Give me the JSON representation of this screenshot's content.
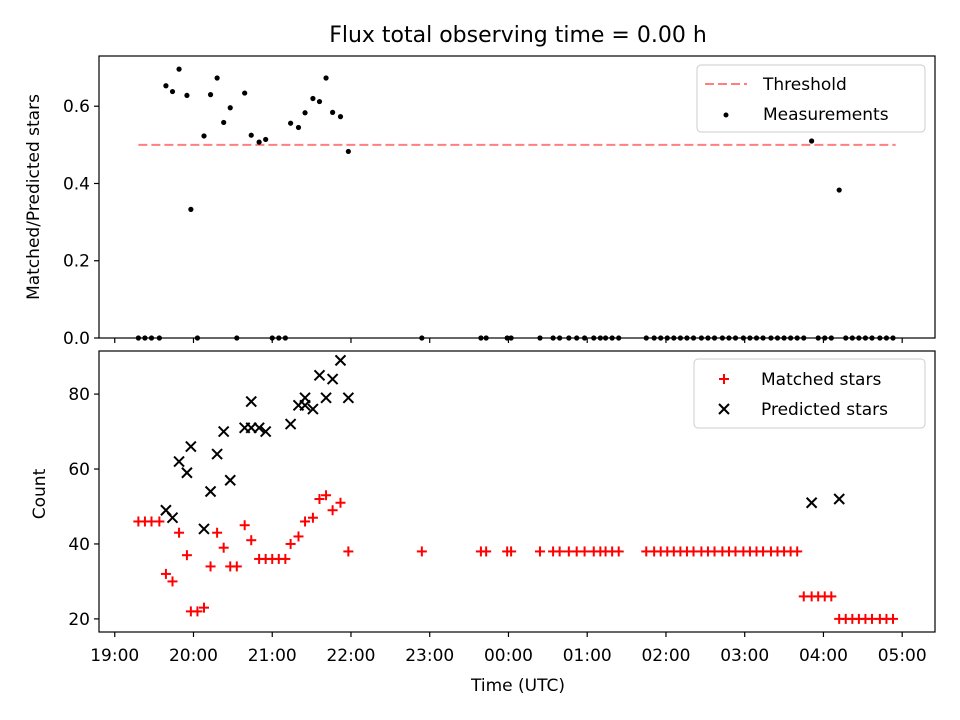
{
  "chart_data": [
    {
      "type": "scatter",
      "title": "Flux total observing time = 0.00 h",
      "xlabel": "",
      "ylabel": "Matched/Predicted stars",
      "xlim": [
        "2000-01-01T18:48",
        "2000-01-02T05:25"
      ],
      "ylim": [
        0,
        0.73
      ],
      "yticks": [
        0.0,
        0.2,
        0.4,
        0.6
      ],
      "ytick_labels": [
        "0.0",
        "0.2",
        "0.4",
        "0.6"
      ],
      "grid": false,
      "legend": "top-right",
      "threshold": {
        "name": "Threshold",
        "y": 0.5,
        "x": [
          "2000-01-01T19:18",
          "2000-01-02T04:55"
        ],
        "color": "#ff7f7f",
        "style": "dashed"
      },
      "series": [
        {
          "name": "Measurements",
          "color": "#000000",
          "marker": "dot",
          "points": [
            [
              "2000-01-01T19:18",
              0.0
            ],
            [
              "2000-01-01T19:23",
              0.0
            ],
            [
              "2000-01-01T19:28",
              0.0
            ],
            [
              "2000-01-01T19:34",
              0.0
            ],
            [
              "2000-01-01T19:39",
              0.653
            ],
            [
              "2000-01-01T19:44",
              0.638
            ],
            [
              "2000-01-01T19:49",
              0.696
            ],
            [
              "2000-01-01T19:55",
              0.628
            ],
            [
              "2000-01-01T19:58",
              0.333
            ],
            [
              "2000-01-01T20:03",
              0.0
            ],
            [
              "2000-01-01T20:08",
              0.523
            ],
            [
              "2000-01-01T20:13",
              0.63
            ],
            [
              "2000-01-01T20:18",
              0.673
            ],
            [
              "2000-01-01T20:23",
              0.558
            ],
            [
              "2000-01-01T20:28",
              0.596
            ],
            [
              "2000-01-01T20:33",
              0.0
            ],
            [
              "2000-01-01T20:39",
              0.634
            ],
            [
              "2000-01-01T20:44",
              0.525
            ],
            [
              "2000-01-01T20:50",
              0.507
            ],
            [
              "2000-01-01T20:55",
              0.514
            ],
            [
              "2000-01-01T21:00",
              0.0
            ],
            [
              "2000-01-01T21:05",
              0.0
            ],
            [
              "2000-01-01T21:10",
              0.0
            ],
            [
              "2000-01-01T21:14",
              0.556
            ],
            [
              "2000-01-01T21:20",
              0.545
            ],
            [
              "2000-01-01T21:25",
              0.583
            ],
            [
              "2000-01-01T21:31",
              0.62
            ],
            [
              "2000-01-01T21:36",
              0.612
            ],
            [
              "2000-01-01T21:41",
              0.673
            ],
            [
              "2000-01-01T21:46",
              0.584
            ],
            [
              "2000-01-01T21:52",
              0.573
            ],
            [
              "2000-01-01T21:58",
              0.483
            ],
            [
              "2000-01-01T22:54",
              0.0
            ],
            [
              "2000-01-01T23:39",
              0.0
            ],
            [
              "2000-01-01T23:43",
              0.0
            ],
            [
              "2000-01-01T23:59",
              0.0
            ],
            [
              "2000-01-02T00:02",
              0.0
            ],
            [
              "2000-01-02T00:24",
              0.0
            ],
            [
              "2000-01-02T00:34",
              0.0
            ],
            [
              "2000-01-02T00:39",
              0.0
            ],
            [
              "2000-01-02T00:46",
              0.0
            ],
            [
              "2000-01-02T00:52",
              0.0
            ],
            [
              "2000-01-02T00:58",
              0.0
            ],
            [
              "2000-01-02T01:05",
              0.0
            ],
            [
              "2000-01-02T01:10",
              0.0
            ],
            [
              "2000-01-02T01:14",
              0.0
            ],
            [
              "2000-01-02T01:19",
              0.0
            ],
            [
              "2000-01-02T01:24",
              0.0
            ],
            [
              "2000-01-02T01:45",
              0.0
            ],
            [
              "2000-01-02T01:51",
              0.0
            ],
            [
              "2000-01-02T01:56",
              0.0
            ],
            [
              "2000-01-02T02:01",
              0.0
            ],
            [
              "2000-01-02T02:06",
              0.0
            ],
            [
              "2000-01-02T02:11",
              0.0
            ],
            [
              "2000-01-02T02:16",
              0.0
            ],
            [
              "2000-01-02T02:21",
              0.0
            ],
            [
              "2000-01-02T02:27",
              0.0
            ],
            [
              "2000-01-02T02:32",
              0.0
            ],
            [
              "2000-01-02T02:37",
              0.0
            ],
            [
              "2000-01-02T02:43",
              0.0
            ],
            [
              "2000-01-02T02:48",
              0.0
            ],
            [
              "2000-01-02T02:53",
              0.0
            ],
            [
              "2000-01-02T02:59",
              0.0
            ],
            [
              "2000-01-02T03:04",
              0.0
            ],
            [
              "2000-01-02T03:09",
              0.0
            ],
            [
              "2000-01-02T03:14",
              0.0
            ],
            [
              "2000-01-02T03:20",
              0.0
            ],
            [
              "2000-01-02T03:25",
              0.0
            ],
            [
              "2000-01-02T03:30",
              0.0
            ],
            [
              "2000-01-02T03:35",
              0.0
            ],
            [
              "2000-01-02T03:40",
              0.0
            ],
            [
              "2000-01-02T03:45",
              0.0
            ],
            [
              "2000-01-02T03:51",
              0.51
            ],
            [
              "2000-01-02T03:56",
              0.0
            ],
            [
              "2000-01-02T04:01",
              0.0
            ],
            [
              "2000-01-02T04:06",
              0.0
            ],
            [
              "2000-01-02T04:12",
              0.383
            ],
            [
              "2000-01-02T04:17",
              0.0
            ],
            [
              "2000-01-02T04:22",
              0.0
            ],
            [
              "2000-01-02T04:27",
              0.0
            ],
            [
              "2000-01-02T04:32",
              0.0
            ],
            [
              "2000-01-02T04:37",
              0.0
            ],
            [
              "2000-01-02T04:43",
              0.0
            ],
            [
              "2000-01-02T04:48",
              0.0
            ],
            [
              "2000-01-02T04:53",
              0.0
            ]
          ]
        }
      ]
    },
    {
      "type": "scatter",
      "title": "",
      "xlabel": "Time (UTC)",
      "ylabel": "Count",
      "xlim": [
        "2000-01-01T18:48",
        "2000-01-02T05:25"
      ],
      "ylim": [
        16.5,
        91.5
      ],
      "yticks": [
        20,
        40,
        60,
        80
      ],
      "ytick_labels": [
        "20",
        "40",
        "60",
        "80"
      ],
      "xticks": [
        "2000-01-01T19:00",
        "2000-01-01T20:00",
        "2000-01-01T21:00",
        "2000-01-01T22:00",
        "2000-01-01T23:00",
        "2000-01-02T00:00",
        "2000-01-02T01:00",
        "2000-01-02T02:00",
        "2000-01-02T03:00",
        "2000-01-02T04:00",
        "2000-01-02T05:00"
      ],
      "xtick_labels": [
        "19:00",
        "20:00",
        "21:00",
        "22:00",
        "23:00",
        "00:00",
        "01:00",
        "02:00",
        "03:00",
        "04:00",
        "05:00"
      ],
      "grid": false,
      "legend": "top-right",
      "series": [
        {
          "name": "Matched stars",
          "color": "#ff0000",
          "marker": "plus",
          "points": [
            [
              "2000-01-01T19:18",
              46
            ],
            [
              "2000-01-01T19:23",
              46
            ],
            [
              "2000-01-01T19:28",
              46
            ],
            [
              "2000-01-01T19:34",
              46
            ],
            [
              "2000-01-01T19:39",
              32
            ],
            [
              "2000-01-01T19:44",
              30
            ],
            [
              "2000-01-01T19:49",
              43
            ],
            [
              "2000-01-01T19:55",
              37
            ],
            [
              "2000-01-01T19:58",
              22
            ],
            [
              "2000-01-01T20:03",
              22
            ],
            [
              "2000-01-01T20:08",
              23
            ],
            [
              "2000-01-01T20:13",
              34
            ],
            [
              "2000-01-01T20:18",
              43
            ],
            [
              "2000-01-01T20:23",
              39
            ],
            [
              "2000-01-01T20:28",
              34
            ],
            [
              "2000-01-01T20:33",
              34
            ],
            [
              "2000-01-01T20:39",
              45
            ],
            [
              "2000-01-01T20:44",
              41
            ],
            [
              "2000-01-01T20:50",
              36
            ],
            [
              "2000-01-01T20:55",
              36
            ],
            [
              "2000-01-01T21:00",
              36
            ],
            [
              "2000-01-01T21:05",
              36
            ],
            [
              "2000-01-01T21:10",
              36
            ],
            [
              "2000-01-01T21:14",
              40
            ],
            [
              "2000-01-01T21:20",
              42
            ],
            [
              "2000-01-01T21:25",
              46
            ],
            [
              "2000-01-01T21:31",
              47
            ],
            [
              "2000-01-01T21:36",
              52
            ],
            [
              "2000-01-01T21:41",
              53
            ],
            [
              "2000-01-01T21:46",
              49
            ],
            [
              "2000-01-01T21:52",
              51
            ],
            [
              "2000-01-01T21:58",
              38
            ],
            [
              "2000-01-01T22:54",
              38
            ],
            [
              "2000-01-01T23:39",
              38
            ],
            [
              "2000-01-01T23:43",
              38
            ],
            [
              "2000-01-01T23:59",
              38
            ],
            [
              "2000-01-02T00:02",
              38
            ],
            [
              "2000-01-02T00:24",
              38
            ],
            [
              "2000-01-02T00:34",
              38
            ],
            [
              "2000-01-02T00:39",
              38
            ],
            [
              "2000-01-02T00:46",
              38
            ],
            [
              "2000-01-02T00:52",
              38
            ],
            [
              "2000-01-02T00:58",
              38
            ],
            [
              "2000-01-02T01:05",
              38
            ],
            [
              "2000-01-02T01:10",
              38
            ],
            [
              "2000-01-02T01:14",
              38
            ],
            [
              "2000-01-02T01:19",
              38
            ],
            [
              "2000-01-02T01:24",
              38
            ],
            [
              "2000-01-02T01:45",
              38
            ],
            [
              "2000-01-02T01:51",
              38
            ],
            [
              "2000-01-02T01:56",
              38
            ],
            [
              "2000-01-02T02:01",
              38
            ],
            [
              "2000-01-02T02:06",
              38
            ],
            [
              "2000-01-02T02:11",
              38
            ],
            [
              "2000-01-02T02:16",
              38
            ],
            [
              "2000-01-02T02:21",
              38
            ],
            [
              "2000-01-02T02:27",
              38
            ],
            [
              "2000-01-02T02:32",
              38
            ],
            [
              "2000-01-02T02:37",
              38
            ],
            [
              "2000-01-02T02:43",
              38
            ],
            [
              "2000-01-02T02:48",
              38
            ],
            [
              "2000-01-02T02:53",
              38
            ],
            [
              "2000-01-02T02:59",
              38
            ],
            [
              "2000-01-02T03:04",
              38
            ],
            [
              "2000-01-02T03:09",
              38
            ],
            [
              "2000-01-02T03:14",
              38
            ],
            [
              "2000-01-02T03:20",
              38
            ],
            [
              "2000-01-02T03:25",
              38
            ],
            [
              "2000-01-02T03:30",
              38
            ],
            [
              "2000-01-02T03:35",
              38
            ],
            [
              "2000-01-02T03:40",
              38
            ],
            [
              "2000-01-02T03:45",
              26
            ],
            [
              "2000-01-02T03:51",
              26
            ],
            [
              "2000-01-02T03:56",
              26
            ],
            [
              "2000-01-02T04:01",
              26
            ],
            [
              "2000-01-02T04:06",
              26
            ],
            [
              "2000-01-02T04:12",
              20
            ],
            [
              "2000-01-02T04:17",
              20
            ],
            [
              "2000-01-02T04:22",
              20
            ],
            [
              "2000-01-02T04:27",
              20
            ],
            [
              "2000-01-02T04:32",
              20
            ],
            [
              "2000-01-02T04:37",
              20
            ],
            [
              "2000-01-02T04:43",
              20
            ],
            [
              "2000-01-02T04:48",
              20
            ],
            [
              "2000-01-02T04:53",
              20
            ]
          ]
        },
        {
          "name": "Predicted stars",
          "color": "#000000",
          "marker": "x",
          "points": [
            [
              "2000-01-01T19:39",
              49
            ],
            [
              "2000-01-01T19:44",
              47
            ],
            [
              "2000-01-01T19:49",
              62
            ],
            [
              "2000-01-01T19:55",
              59
            ],
            [
              "2000-01-01T19:58",
              66
            ],
            [
              "2000-01-01T20:08",
              44
            ],
            [
              "2000-01-01T20:13",
              54
            ],
            [
              "2000-01-01T20:18",
              64
            ],
            [
              "2000-01-01T20:23",
              70
            ],
            [
              "2000-01-01T20:28",
              57
            ],
            [
              "2000-01-01T20:39",
              71
            ],
            [
              "2000-01-01T20:44",
              78
            ],
            [
              "2000-01-01T20:44",
              71
            ],
            [
              "2000-01-01T20:50",
              71
            ],
            [
              "2000-01-01T20:55",
              70
            ],
            [
              "2000-01-01T21:14",
              72
            ],
            [
              "2000-01-01T21:20",
              77
            ],
            [
              "2000-01-01T21:25",
              79
            ],
            [
              "2000-01-01T21:25",
              77
            ],
            [
              "2000-01-01T21:31",
              76
            ],
            [
              "2000-01-01T21:36",
              85
            ],
            [
              "2000-01-01T21:41",
              79
            ],
            [
              "2000-01-01T21:46",
              84
            ],
            [
              "2000-01-01T21:52",
              89
            ],
            [
              "2000-01-01T21:58",
              79
            ],
            [
              "2000-01-02T03:51",
              51
            ],
            [
              "2000-01-02T04:12",
              52
            ]
          ]
        }
      ]
    }
  ]
}
